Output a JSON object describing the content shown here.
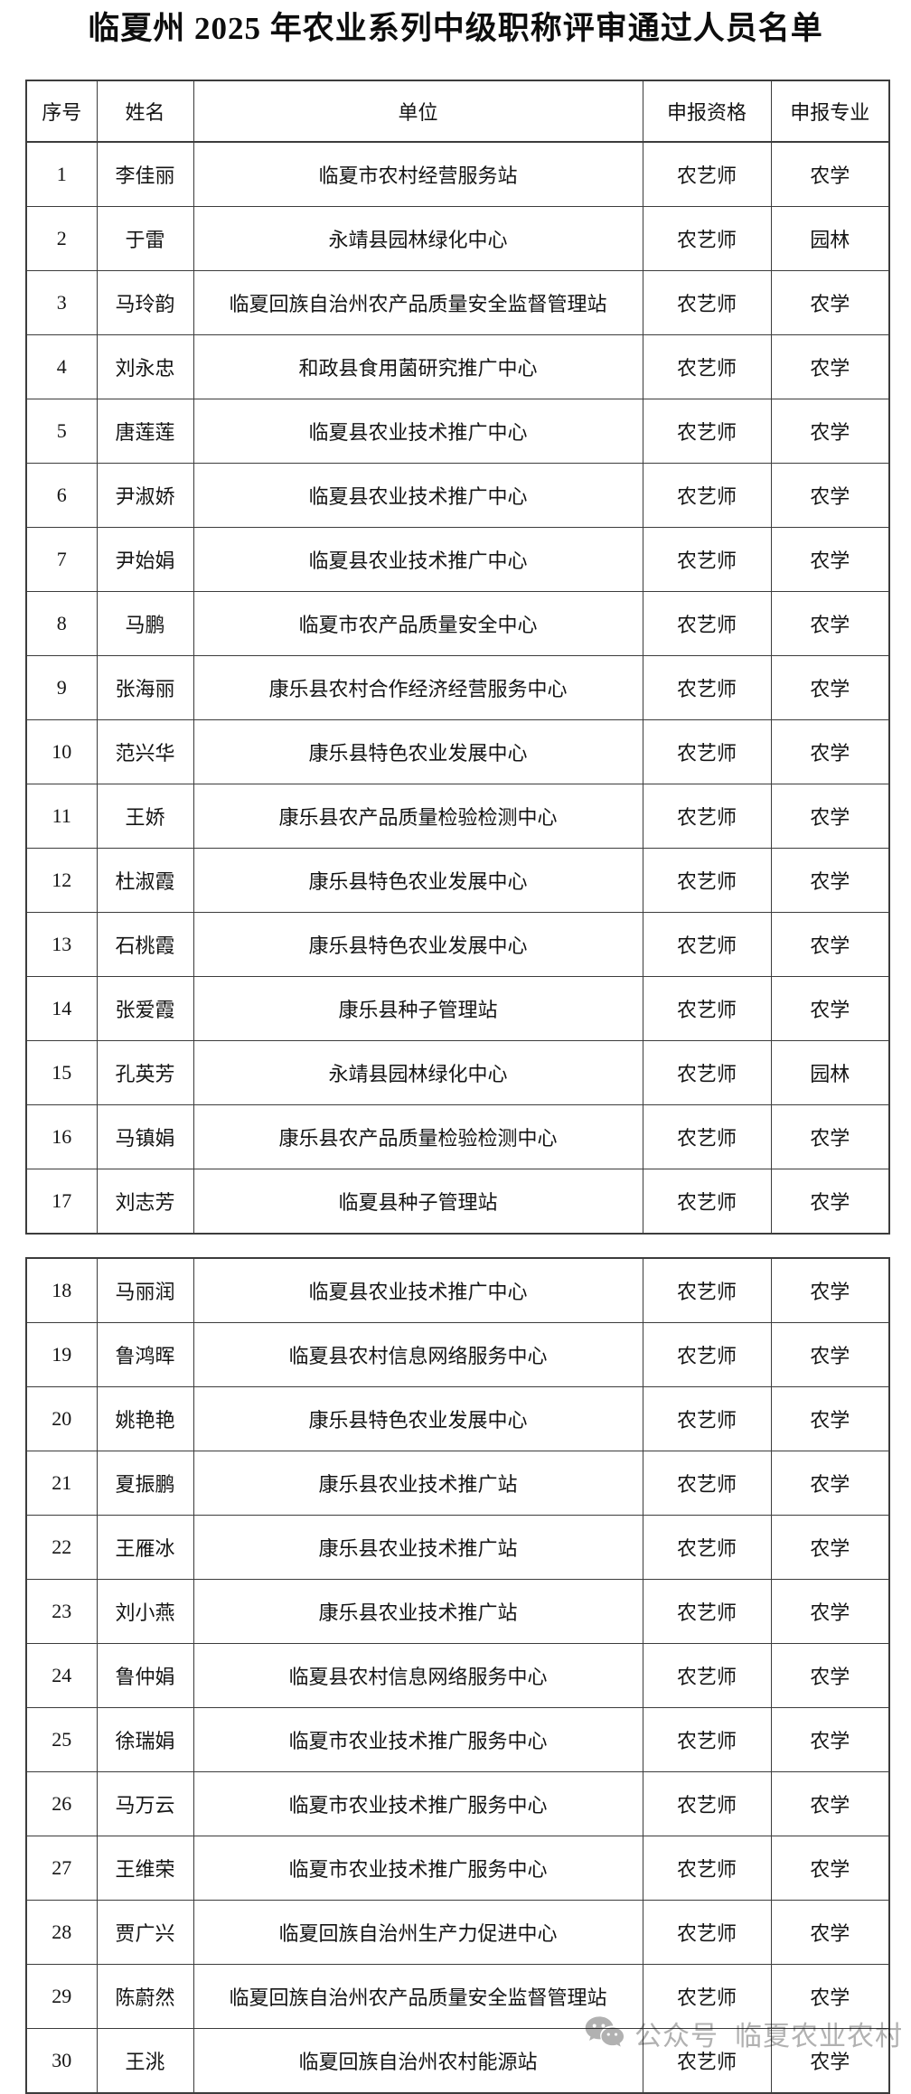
{
  "title": "临夏州 2025 年农业系列中级职称评审通过人员名单",
  "table": {
    "headers": [
      "序号",
      "姓名",
      "单位",
      "申报资格",
      "申报专业"
    ],
    "column_keys": [
      "cell-seq",
      "cell-name",
      "cell-unit",
      "cell-qualification",
      "cell-major"
    ],
    "sections": [
      {
        "rows": [
          [
            "1",
            "李佳丽",
            "临夏市农村经营服务站",
            "农艺师",
            "农学"
          ],
          [
            "2",
            "于雷",
            "永靖县园林绿化中心",
            "农艺师",
            "园林"
          ],
          [
            "3",
            "马玲韵",
            "临夏回族自治州农产品质量安全监督管理站",
            "农艺师",
            "农学"
          ],
          [
            "4",
            "刘永忠",
            "和政县食用菌研究推广中心",
            "农艺师",
            "农学"
          ],
          [
            "5",
            "唐莲莲",
            "临夏县农业技术推广中心",
            "农艺师",
            "农学"
          ],
          [
            "6",
            "尹淑娇",
            "临夏县农业技术推广中心",
            "农艺师",
            "农学"
          ],
          [
            "7",
            "尹始娟",
            "临夏县农业技术推广中心",
            "农艺师",
            "农学"
          ],
          [
            "8",
            "马鹏",
            "临夏市农产品质量安全中心",
            "农艺师",
            "农学"
          ],
          [
            "9",
            "张海丽",
            "康乐县农村合作经济经营服务中心",
            "农艺师",
            "农学"
          ],
          [
            "10",
            "范兴华",
            "康乐县特色农业发展中心",
            "农艺师",
            "农学"
          ],
          [
            "11",
            "王娇",
            "康乐县农产品质量检验检测中心",
            "农艺师",
            "农学"
          ],
          [
            "12",
            "杜淑霞",
            "康乐县特色农业发展中心",
            "农艺师",
            "农学"
          ],
          [
            "13",
            "石桃霞",
            "康乐县特色农业发展中心",
            "农艺师",
            "农学"
          ],
          [
            "14",
            "张爱霞",
            "康乐县种子管理站",
            "农艺师",
            "农学"
          ],
          [
            "15",
            "孔英芳",
            "永靖县园林绿化中心",
            "农艺师",
            "园林"
          ],
          [
            "16",
            "马镇娟",
            "康乐县农产品质量检验检测中心",
            "农艺师",
            "农学"
          ],
          [
            "17",
            "刘志芳",
            "临夏县种子管理站",
            "农艺师",
            "农学"
          ]
        ]
      },
      {
        "rows": [
          [
            "18",
            "马丽润",
            "临夏县农业技术推广中心",
            "农艺师",
            "农学"
          ],
          [
            "19",
            "鲁鸿晖",
            "临夏县农村信息网络服务中心",
            "农艺师",
            "农学"
          ],
          [
            "20",
            "姚艳艳",
            "康乐县特色农业发展中心",
            "农艺师",
            "农学"
          ],
          [
            "21",
            "夏振鹏",
            "康乐县农业技术推广站",
            "农艺师",
            "农学"
          ],
          [
            "22",
            "王雁冰",
            "康乐县农业技术推广站",
            "农艺师",
            "农学"
          ],
          [
            "23",
            "刘小燕",
            "康乐县农业技术推广站",
            "农艺师",
            "农学"
          ],
          [
            "24",
            "鲁仲娟",
            "临夏县农村信息网络服务中心",
            "农艺师",
            "农学"
          ],
          [
            "25",
            "徐瑞娟",
            "临夏市农业技术推广服务中心",
            "农艺师",
            "农学"
          ],
          [
            "26",
            "马万云",
            "临夏市农业技术推广服务中心",
            "农艺师",
            "农学"
          ],
          [
            "27",
            "王维荣",
            "临夏市农业技术推广服务中心",
            "农艺师",
            "农学"
          ],
          [
            "28",
            "贾广兴",
            "临夏回族自治州生产力促进中心",
            "农艺师",
            "农学"
          ],
          [
            "29",
            "陈蔚然",
            "临夏回族自治州农产品质量安全监督管理站",
            "农艺师",
            "农学"
          ],
          [
            "30",
            "王洮",
            "临夏回族自治州农村能源站",
            "农艺师",
            "农学"
          ]
        ]
      }
    ]
  },
  "watermark": {
    "icon": "wechat-icon",
    "label": "公众号",
    "account": "临夏农业农村",
    "color": "#b1b1b1"
  }
}
